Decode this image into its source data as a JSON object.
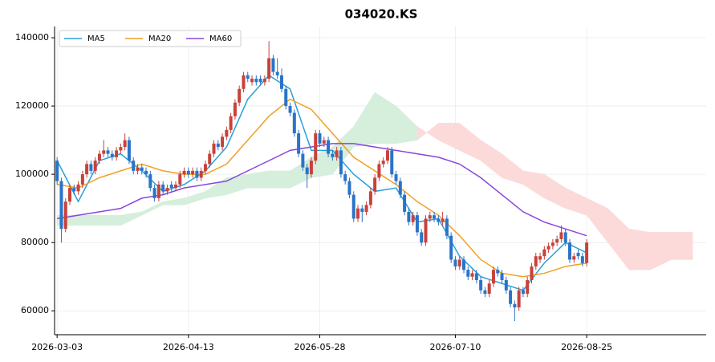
{
  "chart_data": {
    "type": "candlestick",
    "title": "034020.KS",
    "xticks": [
      {
        "value": 0,
        "label": "2026-03-03"
      },
      {
        "value": 31,
        "label": "2026-04-13"
      },
      {
        "value": 62,
        "label": "2026-05-28"
      },
      {
        "value": 94,
        "label": "2026-07-10"
      },
      {
        "value": 125,
        "label": "2026-08-25"
      }
    ],
    "xlim": [
      -0.6,
      153.2
    ],
    "ylim": [
      53000,
      143300
    ],
    "yticks": [
      60000,
      80000,
      100000,
      120000,
      140000
    ],
    "grid": true,
    "legend": "upper left",
    "up_color": "#c8423a",
    "down_color": "#2a74c8",
    "ohlc": [
      [
        104000.0,
        105000.0,
        97000.0,
        98000.0
      ],
      [
        98000.0,
        99000.0,
        80000.0,
        84000.0
      ],
      [
        84000.0,
        93000.0,
        83000.0,
        92000.0
      ],
      [
        92000.0,
        97000.0,
        91000.0,
        96000.0
      ],
      [
        96000.0,
        97000.0,
        94000.0,
        95000.0
      ],
      [
        95000.0,
        98000.0,
        94000.0,
        97000.0
      ],
      [
        97000.0,
        101000.0,
        96000.0,
        100000.0
      ],
      [
        100000.0,
        104000.0,
        99000.0,
        103000.0
      ],
      [
        103000.0,
        104000.0,
        100000.0,
        101000.0
      ],
      [
        101000.0,
        105000.0,
        100000.0,
        104000.0
      ],
      [
        104000.0,
        107000.0,
        103000.0,
        106000.0
      ],
      [
        106000.0,
        110000.0,
        105000.0,
        107000.0
      ],
      [
        107000.0,
        108000.0,
        105000.0,
        106000.0
      ],
      [
        106000.0,
        107000.0,
        104000.0,
        105000.0
      ],
      [
        105000.0,
        108000.0,
        104000.0,
        107000.0
      ],
      [
        107000.0,
        109000.0,
        106000.0,
        108000.0
      ],
      [
        108000.0,
        112000.0,
        107000.0,
        110000.0
      ],
      [
        110000.0,
        111000.0,
        103000.0,
        104000.0
      ],
      [
        104000.0,
        105000.0,
        100000.0,
        101000.0
      ],
      [
        101000.0,
        103000.0,
        100000.0,
        102000.0
      ],
      [
        102000.0,
        103000.0,
        100000.0,
        101000.0
      ],
      [
        101000.0,
        102000.0,
        99000.0,
        100000.0
      ],
      [
        100000.0,
        101000.0,
        95000.0,
        96000.0
      ],
      [
        96000.0,
        97000.0,
        92000.0,
        93000.0
      ],
      [
        93000.0,
        98000.0,
        92000.0,
        97000.0
      ],
      [
        97000.0,
        98000.0,
        94000.0,
        95000.0
      ],
      [
        95000.0,
        97000.0,
        94000.0,
        96000.0
      ],
      [
        97000.0,
        98000.0,
        95000.0,
        96000.0
      ],
      [
        96000.0,
        98000.0,
        95000.0,
        97000.0
      ],
      [
        97000.0,
        101000.0,
        96000.0,
        100000.0
      ],
      [
        100000.0,
        102000.0,
        99000.0,
        101000.0
      ],
      [
        101000.0,
        102000.0,
        99000.0,
        100000.0
      ],
      [
        100000.0,
        102000.0,
        99000.0,
        101000.0
      ],
      [
        101000.0,
        102000.0,
        98000.0,
        99000.0
      ],
      [
        99000.0,
        102000.0,
        98000.0,
        101000.0
      ],
      [
        101000.0,
        104000.0,
        100000.0,
        103000.0
      ],
      [
        103000.0,
        107000.0,
        102000.0,
        106000.0
      ],
      [
        106000.0,
        110000.0,
        105000.0,
        109000.0
      ],
      [
        109000.0,
        110000.0,
        107000.0,
        108000.0
      ],
      [
        108000.0,
        112000.0,
        107000.0,
        111000.0
      ],
      [
        111000.0,
        114000.0,
        110000.0,
        113000.0
      ],
      [
        113000.0,
        118000.0,
        112000.0,
        117000.0
      ],
      [
        117000.0,
        122000.0,
        116000.0,
        121000.0
      ],
      [
        121000.0,
        126000.0,
        120000.0,
        125000.0
      ],
      [
        125000.0,
        130000.0,
        124000.0,
        129000.0
      ],
      [
        129000.0,
        130000.0,
        127000.0,
        128000.0
      ],
      [
        127000.0,
        129000.0,
        126000.0,
        128000.0
      ],
      [
        128000.0,
        129000.0,
        126000.0,
        127000.0
      ],
      [
        128000.0,
        129000.0,
        126000.0,
        127000.0
      ],
      [
        127000.0,
        129000.0,
        126000.0,
        128000.0
      ],
      [
        128000.0,
        139000.0,
        127000.0,
        134000.0
      ],
      [
        134000.0,
        135000.0,
        129000.0,
        130000.0
      ],
      [
        130000.0,
        134000.0,
        128000.0,
        129000.0
      ],
      [
        129000.0,
        131000.0,
        124000.0,
        125000.0
      ],
      [
        125000.0,
        126000.0,
        119000.0,
        120000.0
      ],
      [
        120000.0,
        121000.0,
        117000.0,
        118000.0
      ],
      [
        118000.0,
        119000.0,
        111000.0,
        112000.0
      ],
      [
        112000.0,
        113000.0,
        105000.0,
        106000.0
      ],
      [
        106000.0,
        107000.0,
        101000.0,
        102000.0
      ],
      [
        102000.0,
        103000.0,
        96000.0,
        100000.0
      ],
      [
        100000.0,
        105000.0,
        99000.0,
        104000.0
      ],
      [
        104000.0,
        113000.0,
        103000.0,
        112000.0
      ],
      [
        112000.0,
        113000.0,
        108000.0,
        109000.0
      ],
      [
        109000.0,
        111000.0,
        108000.0,
        110000.0
      ],
      [
        110000.0,
        111000.0,
        105000.0,
        106000.0
      ],
      [
        106000.0,
        107000.0,
        104000.0,
        105000.0
      ],
      [
        105000.0,
        108000.0,
        104000.0,
        107000.0
      ],
      [
        107000.0,
        108000.0,
        99000.0,
        100000.0
      ],
      [
        100000.0,
        101000.0,
        97000.0,
        98000.0
      ],
      [
        98000.0,
        99000.0,
        93000.0,
        94000.0
      ],
      [
        94000.0,
        95000.0,
        86000.0,
        87000.0
      ],
      [
        87000.0,
        91000.0,
        86000.0,
        90000.0
      ],
      [
        90000.0,
        91000.0,
        86000.0,
        89000.0
      ],
      [
        89000.0,
        92000.0,
        88000.0,
        91000.0
      ],
      [
        91000.0,
        96000.0,
        90000.0,
        95000.0
      ],
      [
        95000.0,
        100000.0,
        94000.0,
        99000.0
      ],
      [
        99000.0,
        104000.0,
        98000.0,
        103000.0
      ],
      [
        103000.0,
        105000.0,
        102000.0,
        104000.0
      ],
      [
        104000.0,
        108000.0,
        103000.0,
        107000.0
      ],
      [
        107000.0,
        108000.0,
        99000.0,
        100000.0
      ],
      [
        100000.0,
        101000.0,
        97000.0,
        98000.0
      ],
      [
        98000.0,
        99000.0,
        93000.0,
        94000.0
      ],
      [
        94000.0,
        95000.0,
        88000.0,
        89000.0
      ],
      [
        89000.0,
        90000.0,
        85000.0,
        86000.0
      ],
      [
        86000.0,
        89000.0,
        85000.0,
        88000.0
      ],
      [
        88000.0,
        89000.0,
        82000.0,
        83000.0
      ],
      [
        83000.0,
        84000.0,
        79000.0,
        80000.0
      ],
      [
        80000.0,
        88000.0,
        79000.0,
        87000.0
      ],
      [
        87000.0,
        89000.0,
        86000.0,
        88000.0
      ],
      [
        88000.0,
        89000.0,
        86000.0,
        87000.0
      ],
      [
        87000.0,
        88000.0,
        85000.0,
        86000.0
      ],
      [
        86000.0,
        89000.0,
        85000.0,
        87000.0
      ],
      [
        87000.0,
        88000.0,
        81000.0,
        82000.0
      ],
      [
        82000.0,
        83000.0,
        74000.0,
        75000.0
      ],
      [
        75000.0,
        76000.0,
        72000.0,
        73000.0
      ],
      [
        73000.0,
        76000.0,
        72000.0,
        75000.0
      ],
      [
        75000.0,
        76000.0,
        71000.0,
        72000.0
      ],
      [
        72000.0,
        73000.0,
        69000.0,
        70000.0
      ],
      [
        70000.0,
        72000.0,
        69000.0,
        71000.0
      ],
      [
        71000.0,
        72000.0,
        68000.0,
        69000.0
      ],
      [
        69000.0,
        70000.0,
        65000.0,
        66000.0
      ],
      [
        66000.0,
        67000.0,
        64000.0,
        65000.0
      ],
      [
        65000.0,
        69000.0,
        64000.0,
        68000.0
      ],
      [
        68000.0,
        73000.0,
        67000.0,
        72000.0
      ],
      [
        72000.0,
        73000.0,
        70000.0,
        71000.0
      ],
      [
        71000.0,
        72000.0,
        68000.0,
        69000.0
      ],
      [
        69000.0,
        70000.0,
        65000.0,
        66000.0
      ],
      [
        66000.0,
        67000.0,
        61000.0,
        62000.0
      ],
      [
        62000.0,
        63000.0,
        57000.0,
        61000.0
      ],
      [
        61000.0,
        67000.0,
        60000.0,
        66000.0
      ],
      [
        66000.0,
        67000.0,
        64000.0,
        65000.0
      ],
      [
        65000.0,
        70000.0,
        64000.0,
        69000.0
      ],
      [
        69000.0,
        74000.0,
        68000.0,
        73000.0
      ],
      [
        73000.0,
        77000.0,
        72000.0,
        76000.0
      ],
      [
        75000.0,
        77000.0,
        74000.0,
        76000.0
      ],
      [
        76000.0,
        79000.0,
        75000.0,
        78000.0
      ],
      [
        78000.0,
        80000.0,
        77000.0,
        79000.0
      ],
      [
        79000.0,
        81000.0,
        78000.0,
        80000.0
      ],
      [
        80000.0,
        82000.0,
        79000.0,
        81000.0
      ],
      [
        81000.0,
        85000.0,
        80000.0,
        83000.0
      ],
      [
        83000.0,
        84000.0,
        79000.0,
        80000.0
      ],
      [
        80000.0,
        81000.0,
        74000.0,
        75000.0
      ],
      [
        75000.0,
        77000.0,
        74000.0,
        76000.0
      ],
      [
        77000.0,
        78000.0,
        75000.0,
        76000.0
      ],
      [
        76000.0,
        77000.0,
        73000.0,
        74000.0
      ],
      [
        74000.0,
        81000.0,
        73000.0,
        80000.0
      ]
    ],
    "line_x": [
      0,
      5,
      10,
      15,
      20,
      25,
      30,
      35,
      40,
      45,
      50,
      55,
      60,
      65,
      70,
      75,
      80,
      85,
      90,
      95,
      100,
      105,
      110,
      115,
      120,
      125
    ],
    "series": [
      {
        "name": "MA5",
        "color": "#27a0dc",
        "values": [
          104000.0,
          92000.0,
          104000.0,
          106000.0,
          101000.0,
          95000.0,
          97000.0,
          101000.0,
          108000.0,
          122000.0,
          129000.0,
          125000.0,
          107000.0,
          107000.0,
          100000.0,
          95000.0,
          96000.0,
          86000.0,
          87000.0,
          76000.0,
          70000.0,
          68000.0,
          66000.0,
          74000.0,
          80000.0,
          77000.0
        ]
      },
      {
        "name": "MA20",
        "color": "#f0a024",
        "values": [
          97000.0,
          96000.0,
          99000.0,
          101000.0,
          103000.0,
          101000.0,
          100000.0,
          100000.0,
          103000.0,
          110000.0,
          117000.0,
          122000.0,
          119000.0,
          112000.0,
          105000.0,
          101000.0,
          97000.0,
          92000.0,
          88000.0,
          82000.0,
          75000.0,
          71000.0,
          70000.0,
          71000.0,
          73000.0,
          74000.0
        ]
      },
      {
        "name": "MA60",
        "color": "#8a45dd",
        "values": [
          87000.0,
          88000.0,
          89000.0,
          90000.0,
          93000.0,
          94000.0,
          96000.0,
          97000.0,
          98000.0,
          101000.0,
          104000.0,
          107000.0,
          108000.0,
          109000.0,
          109000.0,
          108000.0,
          107000.0,
          106000.0,
          105000.0,
          103000.0,
          99000.0,
          94000.0,
          89000.0,
          86000.0,
          84000.0,
          82000.0
        ]
      }
    ],
    "cloud_x": [
      0,
      5,
      10,
      15,
      20,
      25,
      30,
      35,
      40,
      45,
      50,
      55,
      60,
      65,
      70,
      75,
      80,
      85,
      90,
      95,
      100,
      105,
      110,
      115,
      120,
      125,
      130,
      135,
      140,
      145,
      150
    ],
    "span_a": [
      88000.0,
      88000.0,
      88000.0,
      88000.0,
      89000.0,
      92000.0,
      93000.0,
      95000.0,
      99000.0,
      100000.0,
      101000.0,
      101000.0,
      105000.0,
      108000.0,
      114000.0,
      124000.0,
      120000.0,
      114000.0,
      110000.0,
      107000.0,
      104000.0,
      99000.0,
      97000.0,
      93000.0,
      90000.0,
      88000.0,
      80000.0,
      72000.0,
      72000.0,
      75000.0,
      75000.0
    ],
    "span_b": [
      85000.0,
      85000.0,
      85000.0,
      85000.0,
      88000.0,
      91000.0,
      91000.0,
      93000.0,
      94000.0,
      96000.0,
      96000.0,
      96000.0,
      99000.0,
      100000.0,
      108000.0,
      109000.0,
      109000.0,
      110000.0,
      115000.0,
      115000.0,
      110000.0,
      106000.0,
      101000.0,
      100000.0,
      96000.0,
      93000.0,
      90000.0,
      84000.0,
      83000.0,
      83000.0,
      83000.0
    ],
    "cloud_up_color": "#d6eedc",
    "cloud_down_color": "#fcdada"
  }
}
